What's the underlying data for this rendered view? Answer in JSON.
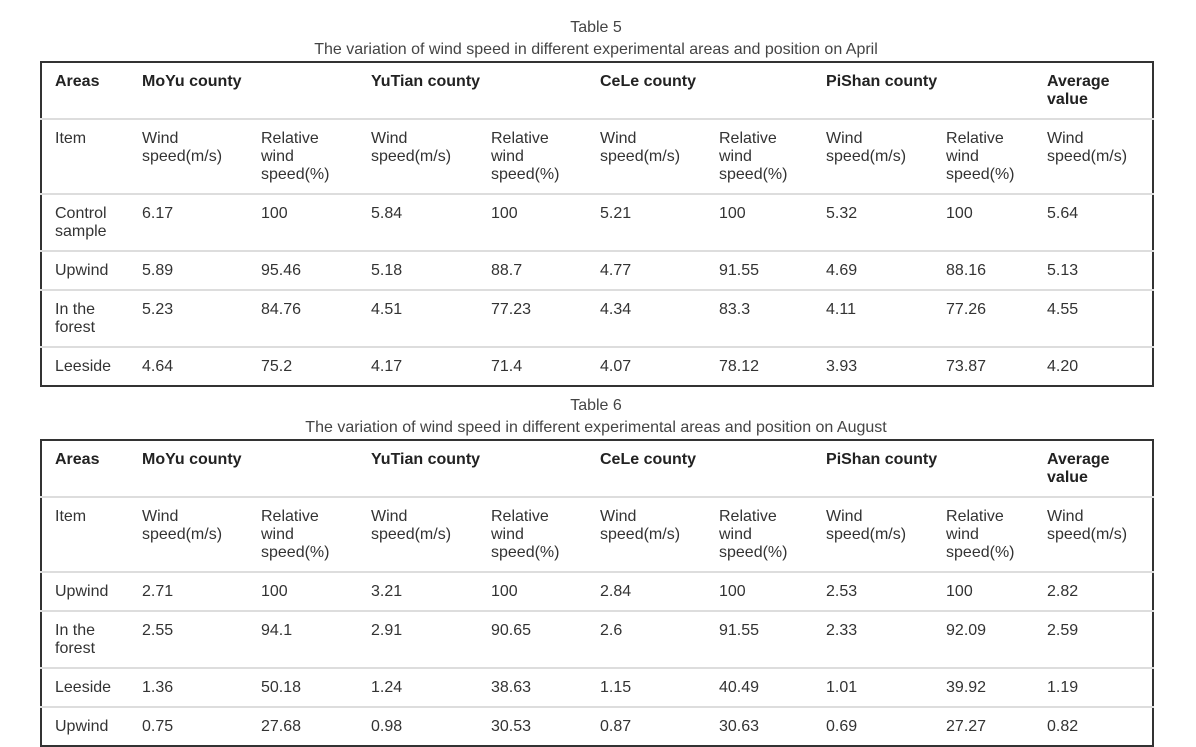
{
  "tables": [
    {
      "label": "Table 5",
      "title": "The variation of wind speed in different experimental areas and position on April",
      "header": [
        "Areas",
        "MoYu county",
        "YuTian county",
        "CeLe county",
        "PiShan county",
        "Average value"
      ],
      "subheader": [
        "Item",
        "Wind speed(m/s)",
        "Relative wind speed(%)",
        "Wind speed(m/s)",
        "Relative wind speed(%)",
        "Wind speed(m/s)",
        "Relative wind speed(%)",
        "Wind speed(m/s)",
        "Relative wind speed(%)",
        "Wind speed(m/s)"
      ],
      "rows": [
        [
          "Control sample",
          "6.17",
          "100",
          "5.84",
          "100",
          "5.21",
          "100",
          "5.32",
          "100",
          "5.64"
        ],
        [
          "Upwind",
          "5.89",
          "95.46",
          "5.18",
          "88.7",
          "4.77",
          "91.55",
          "4.69",
          "88.16",
          "5.13"
        ],
        [
          "In the forest",
          "5.23",
          "84.76",
          "4.51",
          "77.23",
          "4.34",
          "83.3",
          "4.11",
          "77.26",
          "4.55"
        ],
        [
          "Leeside",
          "4.64",
          "75.2",
          "4.17",
          "71.4",
          "4.07",
          "78.12",
          "3.93",
          "73.87",
          "4.20"
        ]
      ]
    },
    {
      "label": "Table 6",
      "title": "The variation of wind speed in different experimental areas and position on August",
      "header": [
        "Areas",
        "MoYu county",
        "YuTian county",
        "CeLe county",
        "PiShan county",
        "Average value"
      ],
      "subheader": [
        "Item",
        "Wind speed(m/s)",
        "Relative wind speed(%)",
        "Wind speed(m/s)",
        "Relative wind speed(%)",
        "Wind speed(m/s)",
        "Relative wind speed(%)",
        "Wind speed(m/s)",
        "Relative wind speed(%)",
        "Wind speed(m/s)"
      ],
      "rows": [
        [
          "Upwind",
          "2.71",
          "100",
          "3.21",
          "100",
          "2.84",
          "100",
          "2.53",
          "100",
          "2.82"
        ],
        [
          "In the forest",
          "2.55",
          "94.1",
          "2.91",
          "90.65",
          "2.6",
          "91.55",
          "2.33",
          "92.09",
          "2.59"
        ],
        [
          "Leeside",
          "1.36",
          "50.18",
          "1.24",
          "38.63",
          "1.15",
          "40.49",
          "1.01",
          "39.92",
          "1.19"
        ],
        [
          "Upwind",
          "0.75",
          "27.68",
          "0.98",
          "30.53",
          "0.87",
          "30.63",
          "0.69",
          "27.27",
          "0.82"
        ]
      ]
    }
  ]
}
